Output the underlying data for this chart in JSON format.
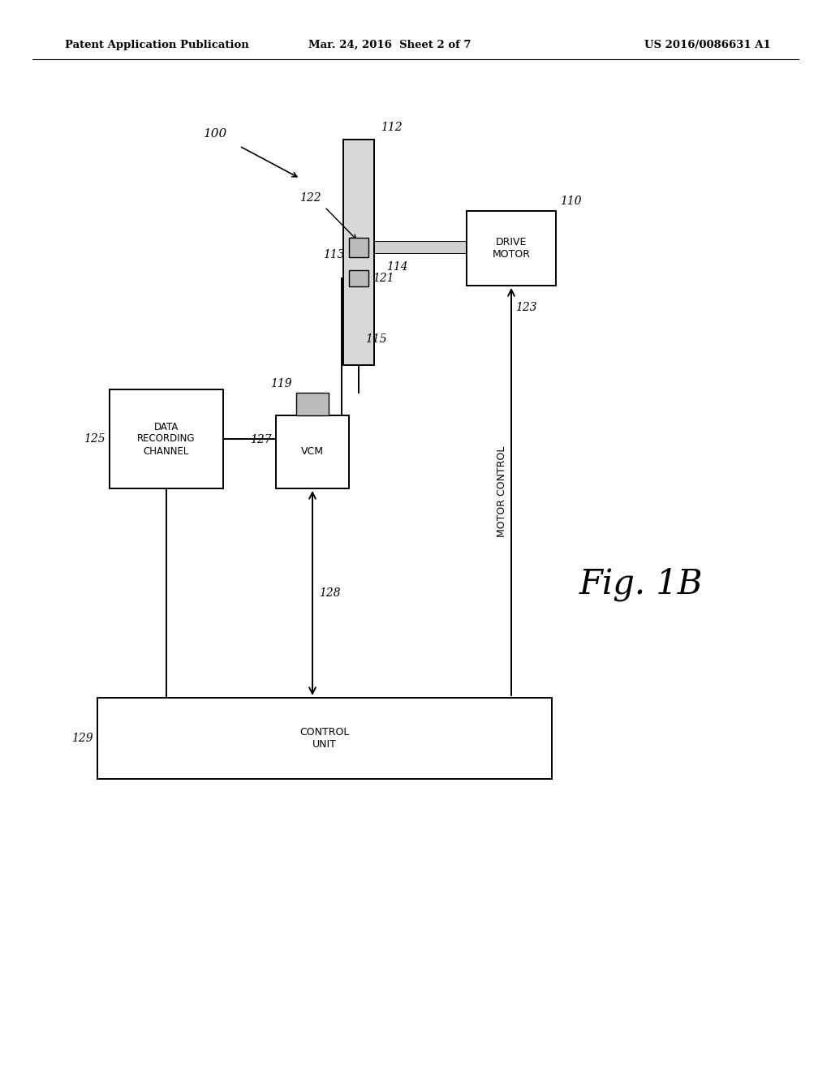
{
  "bg_color": "#ffffff",
  "header_left": "Patent Application Publication",
  "header_center": "Mar. 24, 2016  Sheet 2 of 7",
  "header_right": "US 2016/0086631 A1",
  "fig_label": "Fig. 1B"
}
